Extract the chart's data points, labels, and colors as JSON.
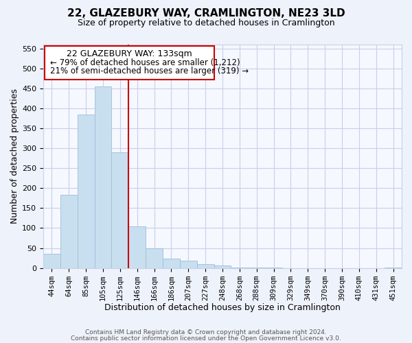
{
  "title": "22, GLAZEBURY WAY, CRAMLINGTON, NE23 3LD",
  "subtitle": "Size of property relative to detached houses in Cramlington",
  "xlabel": "Distribution of detached houses by size in Cramlington",
  "ylabel": "Number of detached properties",
  "bar_labels": [
    "44sqm",
    "64sqm",
    "85sqm",
    "105sqm",
    "125sqm",
    "146sqm",
    "166sqm",
    "186sqm",
    "207sqm",
    "227sqm",
    "248sqm",
    "268sqm",
    "288sqm",
    "309sqm",
    "329sqm",
    "349sqm",
    "370sqm",
    "390sqm",
    "410sqm",
    "431sqm",
    "451sqm"
  ],
  "bar_values": [
    35,
    183,
    385,
    455,
    290,
    105,
    49,
    23,
    18,
    10,
    6,
    1,
    1,
    1,
    0,
    0,
    0,
    0,
    0,
    0,
    1
  ],
  "bar_color": "#c8dff0",
  "bar_edge_color": "#a0bcd8",
  "vline_x_idx": 4,
  "vline_color": "#cc0000",
  "annotation_title": "22 GLAZEBURY WAY: 133sqm",
  "annotation_line1": "← 79% of detached houses are smaller (1,212)",
  "annotation_line2": "21% of semi-detached houses are larger (319) →",
  "annotation_box_color": "#ffffff",
  "annotation_box_edge": "#cc0000",
  "ylim": [
    0,
    560
  ],
  "yticks": [
    0,
    50,
    100,
    150,
    200,
    250,
    300,
    350,
    400,
    450,
    500,
    550
  ],
  "footer_line1": "Contains HM Land Registry data © Crown copyright and database right 2024.",
  "footer_line2": "Contains public sector information licensed under the Open Government Licence v3.0.",
  "background_color": "#eef2fa",
  "plot_bg_color": "#f5f8ff",
  "grid_color": "#c8d0e8",
  "title_fontsize": 11,
  "subtitle_fontsize": 9,
  "xlabel_fontsize": 9,
  "ylabel_fontsize": 9
}
